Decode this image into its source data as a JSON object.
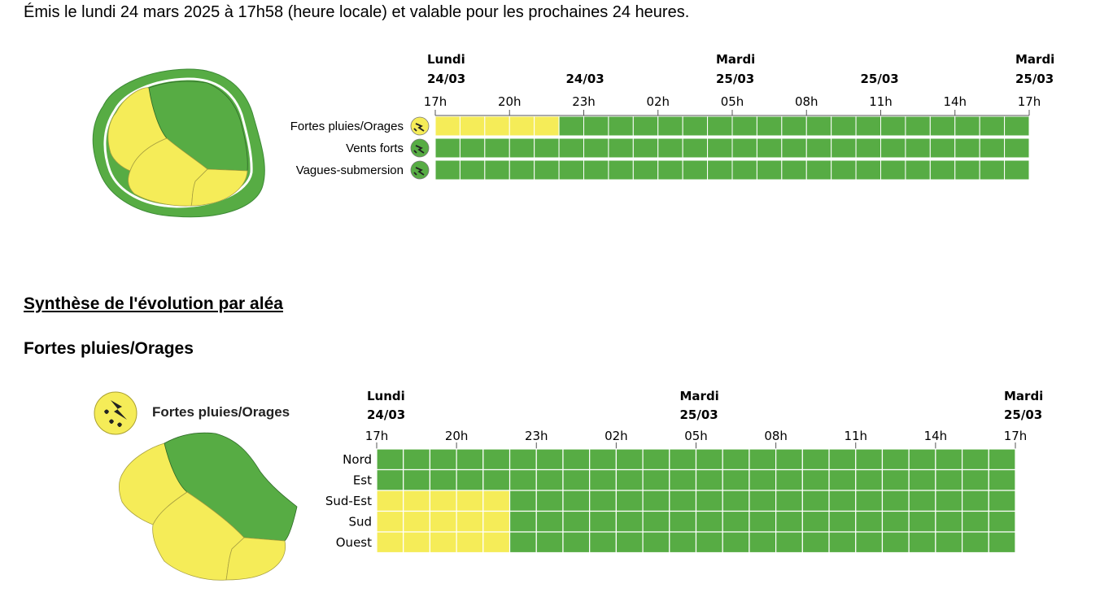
{
  "bulletin": {
    "issued_text": "Émis le lundi 24 mars 2025 à 17h58 (heure locale) et valable pour les prochaines 24 heures."
  },
  "colors": {
    "yellow": "#f5ec58",
    "green": "#57ac44",
    "gridline": "#ffffff",
    "dark_green": "#2e6a28"
  },
  "overview": {
    "date_labels": [
      {
        "line1": "Lundi",
        "line2": "24/03"
      },
      {
        "line1": "",
        "line2": "24/03"
      },
      {
        "line1": "Mardi",
        "line2": "25/03"
      },
      {
        "line1": "",
        "line2": "25/03"
      },
      {
        "line1": "Mardi",
        "line2": "25/03"
      }
    ],
    "hour_labels": [
      "17h",
      "20h",
      "23h",
      "02h",
      "05h",
      "08h",
      "11h",
      "14h",
      "17h"
    ],
    "rows": [
      {
        "label": "Fortes pluies/Orages",
        "icon": "rain-storm-icon",
        "yellow_hours": 5
      },
      {
        "label": "Vents forts",
        "icon": "wind-icon",
        "yellow_hours": 0
      },
      {
        "label": "Vagues-submersion",
        "icon": "wave-icon",
        "yellow_hours": 0
      }
    ]
  },
  "synthesis": {
    "title": "Synthèse de l'évolution par aléa",
    "hazard_title": "Fortes pluies/Orages",
    "hazard_badge_label": "Fortes pluies/Orages",
    "date_labels": [
      {
        "line1": "Lundi",
        "line2": "24/03"
      },
      {
        "line1": "Mardi",
        "line2": "25/03"
      },
      {
        "line1": "Mardi",
        "line2": "25/03"
      }
    ],
    "hour_labels": [
      "17h",
      "20h",
      "23h",
      "02h",
      "05h",
      "08h",
      "11h",
      "14h",
      "17h"
    ],
    "rows": [
      {
        "label": "Nord",
        "yellow_hours": 0
      },
      {
        "label": "Est",
        "yellow_hours": 0
      },
      {
        "label": "Sud-Est",
        "yellow_hours": 5
      },
      {
        "label": "Sud",
        "yellow_hours": 5
      },
      {
        "label": "Ouest",
        "yellow_hours": 5
      }
    ]
  }
}
